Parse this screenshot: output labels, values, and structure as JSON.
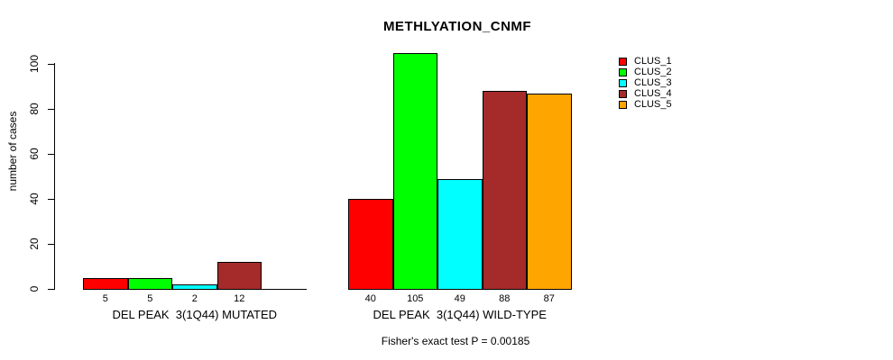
{
  "chart_data": {
    "type": "bar",
    "title": "METHLYATION_CNMF",
    "ylabel": "number of cases",
    "ylim": [
      0,
      100
    ],
    "yticks": [
      0,
      20,
      40,
      60,
      80,
      100
    ],
    "grid": false,
    "legend_position": "right-outside",
    "legend": [
      {
        "name": "CLUS_1",
        "color": "#FF0000"
      },
      {
        "name": "CLUS_2",
        "color": "#00FF00"
      },
      {
        "name": "CLUS_3",
        "color": "#00FFFF"
      },
      {
        "name": "CLUS_4",
        "color": "#A52A2A"
      },
      {
        "name": "CLUS_5",
        "color": "#FFA500"
      }
    ],
    "series_names": [
      "CLUS_1",
      "CLUS_2",
      "CLUS_3",
      "CLUS_4",
      "CLUS_5"
    ],
    "groups": [
      {
        "label": "DEL PEAK  3(1Q44) MUTATED",
        "values": [
          5,
          5,
          2,
          12,
          0
        ],
        "bar_labels": [
          "5",
          "5",
          "2",
          "12",
          ""
        ]
      },
      {
        "label": "DEL PEAK  3(1Q44) WILD-TYPE",
        "values": [
          40,
          105,
          49,
          88,
          87
        ],
        "bar_labels": [
          "40",
          "105",
          "49",
          "88",
          "87"
        ]
      }
    ],
    "annotation": "Fisher's exact test P = 0.00185"
  }
}
